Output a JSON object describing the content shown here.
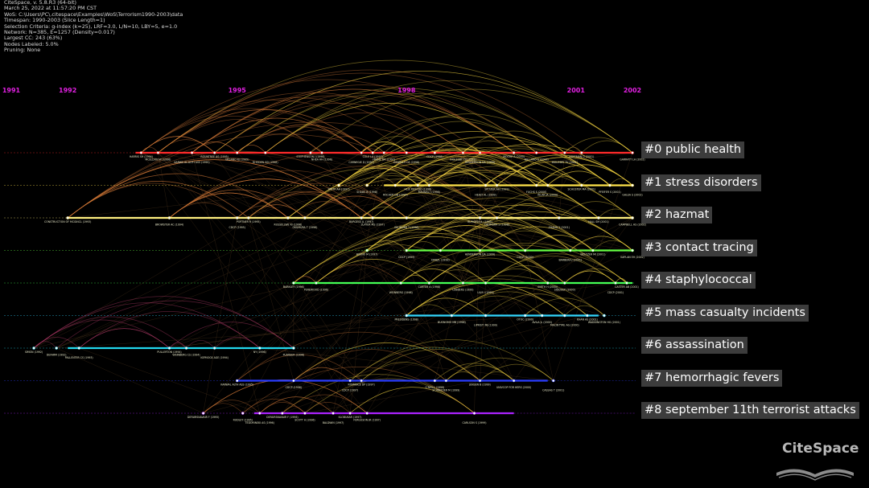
{
  "info_lines": [
    "CiteSpace, v. 5.8.R3 (64-bit)",
    "March 25, 2022 at 11:57:20 PM CST",
    "WoS: C:\\Users\\PC\\.citespace\\Examples\\WoS\\Terrorism1990-2003\\data",
    "Timespan: 1990-2003 (Slice Length=1)",
    "Selection Criteria: g-index (k=25), LRF=3.0, L/N=10, LBY=5, e=1.0",
    "Network: N=385, E=1257 (Density=0.017)",
    "Largest CC: 243 (63%)",
    "Nodes Labeled: 5.0%",
    "Pruning: None"
  ],
  "logo_text": "CiteSpace",
  "colors": {
    "year": "#e020e0",
    "background": "#000000",
    "arc_warm": "#f0c040",
    "arc_cool": "#d06030"
  },
  "chart_data": {
    "type": "timeline",
    "years": [
      1991,
      1992,
      1995,
      1998,
      2001,
      2002
    ],
    "xlim": [
      1991,
      2002
    ],
    "clusters": [
      {
        "id": 0,
        "label": "#0 public health",
        "color": "#ff2a2a",
        "start": 1993.2,
        "end": 2002,
        "nodes": [
          {
            "year": 1993.3,
            "label": "HARRIS SH (1994)"
          },
          {
            "year": 1993.6,
            "label": "MCELDON W (1996)"
          },
          {
            "year": 1994.2,
            "label": "KARWA AL-ALTH ASS (1995)"
          },
          {
            "year": 1994.6,
            "label": "ROUNTREE AS (1995)"
          },
          {
            "year": 1995.0,
            "label": "URSANO RJ (1995)"
          },
          {
            "year": 1995.5,
            "label": "RHODEN GD (1996)"
          },
          {
            "year": 1996.3,
            "label": "STEPHENSON J (1996)"
          },
          {
            "year": 1996.5,
            "label": "NHEA AH (1996)"
          },
          {
            "year": 1997.2,
            "label": "CARNEGIE D (1997)"
          },
          {
            "year": 1997.4,
            "label": "COLE LA (1997)"
          },
          {
            "year": 1997.6,
            "label": "FRANZ DR (1997)"
          },
          {
            "year": 1998.0,
            "label": "ESWELLS OS (1998)"
          },
          {
            "year": 1998.5,
            "label": "CDCP (1998)"
          },
          {
            "year": 1999.0,
            "label": "INGLESBY TV (1999)"
          },
          {
            "year": 1999.3,
            "label": "HENDERSON DA (1999)"
          },
          {
            "year": 1999.9,
            "label": "MOORE A (2000)"
          },
          {
            "year": 2000.3,
            "label": "BALLARD G (2000)"
          },
          {
            "year": 2000.8,
            "label": "INGLESBY TV (2001)"
          },
          {
            "year": 2001.1,
            "label": "HOFFMAN D (2001)"
          },
          {
            "year": 2002.0,
            "label": "GARRATT LA (2002)"
          }
        ]
      },
      {
        "id": 1,
        "label": "#1 stress disorders",
        "color": "#ffe44a",
        "start": 1997.6,
        "end": 2002,
        "nodes": [
          {
            "year": 1996.8,
            "label": "SMITH AA (1997)"
          },
          {
            "year": 1997.3,
            "label": "SHADE B (1998)"
          },
          {
            "year": 1997.8,
            "label": "ROCHER DB (1997)"
          },
          {
            "year": 1998.2,
            "label": "HLIX RICH DO (1998)"
          },
          {
            "year": 1998.4,
            "label": "MAUNAL J (1998)"
          },
          {
            "year": 1999.4,
            "label": "HEALY AL (1999)"
          },
          {
            "year": 1999.6,
            "label": "SPITZER AA (1999)"
          },
          {
            "year": 2000.3,
            "label": "FUCHS S (2000)"
          },
          {
            "year": 2000.5,
            "label": "KILAR JA (2000)"
          },
          {
            "year": 2001.1,
            "label": "SCHUSTER MA (2001)"
          },
          {
            "year": 2001.6,
            "label": "PFEIFER S (2001)"
          },
          {
            "year": 2002.0,
            "label": "GALEA S (2002)"
          }
        ]
      },
      {
        "id": 2,
        "label": "#2 hazmat",
        "color": "#fff080",
        "start": 1992.0,
        "end": 2002,
        "nodes": [
          {
            "year": 1992.0,
            "label": "CONSTRUCTION OF MCGINCL (1993)"
          },
          {
            "year": 1993.8,
            "label": "BROWSTER AC (1994)"
          },
          {
            "year": 1995.0,
            "label": "CDCP (1995)"
          },
          {
            "year": 1995.2,
            "label": "PORTNER R (1995)"
          },
          {
            "year": 1995.9,
            "label": "RUSSELLWE KI (1996)"
          },
          {
            "year": 1996.2,
            "label": "OKUMURA T (1996)"
          },
          {
            "year": 1997.2,
            "label": "BURGESS JL (1997)"
          },
          {
            "year": 1997.4,
            "label": "SLATER MS (1997)"
          },
          {
            "year": 1998.0,
            "label": "OKUMURA T (1998)"
          },
          {
            "year": 1999.3,
            "label": "BURGESS JL (1999)"
          },
          {
            "year": 1999.6,
            "label": "OKUMURA S (1998)"
          },
          {
            "year": 2000.7,
            "label": "ZHANG Y (2001)"
          },
          {
            "year": 2001.4,
            "label": "HALL SM (2001)"
          },
          {
            "year": 2002.0,
            "label": "CAMPBELL HS (2002)"
          }
        ]
      },
      {
        "id": 3,
        "label": "#3 contact tracing",
        "color": "#66ff44",
        "start": 1998.0,
        "end": 2002,
        "nodes": [
          {
            "year": 1997.3,
            "label": "BUENO M (1997)"
          },
          {
            "year": 1998.0,
            "label": "CDCP (1999)"
          },
          {
            "year": 1998.6,
            "label": "DANZL (1999)"
          },
          {
            "year": 1999.3,
            "label": "HENDERSON DA (1999)"
          },
          {
            "year": 2000.1,
            "label": "CDCP (2000)"
          },
          {
            "year": 2000.9,
            "label": "BARBERA J (2001)"
          },
          {
            "year": 2001.3,
            "label": "WELTZER MI (2001)"
          },
          {
            "year": 2002.0,
            "label": "KAPLAN EH (2002)"
          }
        ]
      },
      {
        "id": 4,
        "label": "#4 staphylococcal",
        "color": "#44ff55",
        "start": 1996.0,
        "end": 2002,
        "nodes": [
          {
            "year": 1996.0,
            "label": "BARKLEY (1996)"
          },
          {
            "year": 1996.4,
            "label": "PEREWOOD (1996)"
          },
          {
            "year": 1997.9,
            "label": "WEINBERG (1998)"
          },
          {
            "year": 1998.4,
            "label": "CARTER A (1998)"
          },
          {
            "year": 1999.0,
            "label": "LUBBERS (1999)"
          },
          {
            "year": 1999.4,
            "label": "ULM I (1999)"
          },
          {
            "year": 2000.5,
            "label": "SMITH H (2000)"
          },
          {
            "year": 2000.8,
            "label": "SIDDHUP (2000)"
          },
          {
            "year": 2001.7,
            "label": "CDCP (2001)"
          },
          {
            "year": 2001.9,
            "label": "CASTER AB (2001)"
          }
        ]
      },
      {
        "id": 5,
        "label": "#5 mass casualty incidents",
        "color": "#33d8ff",
        "start": 1998.0,
        "end": 2001.4,
        "nodes": [
          {
            "year": 1998.0,
            "label": "PRESIDENS (1998)"
          },
          {
            "year": 1998.8,
            "label": "BUONOMO MB (1998)"
          },
          {
            "year": 1999.4,
            "label": "LIPRISTI MJ (1999)"
          },
          {
            "year": 2000.1,
            "label": "OTOC (2000)"
          },
          {
            "year": 2000.4,
            "label": "AVILA JL (2000)"
          },
          {
            "year": 2000.8,
            "label": "MACINTYRE AG (2000)"
          },
          {
            "year": 2001.2,
            "label": "KHAN AS (2001)"
          },
          {
            "year": 2001.5,
            "label": "WADDINGTON HG (2001)"
          }
        ]
      },
      {
        "id": 6,
        "label": "#6 assassination",
        "color": "#22d8ee",
        "start": 1992.0,
        "end": 1996.0,
        "nodes": [
          {
            "year": 1991.4,
            "label": "SIMON (1992)"
          },
          {
            "year": 1991.8,
            "label": "DEFARM (1992)"
          },
          {
            "year": 1992.2,
            "label": "PALLENTER CS (1993)"
          },
          {
            "year": 1993.8,
            "label": "PULLERTON (1994)"
          },
          {
            "year": 1994.1,
            "label": "WEINBERG CS (1994)"
          },
          {
            "year": 1994.6,
            "label": "KEPNOCK AGE (1994)"
          },
          {
            "year": 1995.4,
            "label": "NY (1996)"
          },
          {
            "year": 1996.0,
            "label": "PLANGER (1996)"
          }
        ]
      },
      {
        "id": 7,
        "label": "#7 hemorrhagic fevers",
        "color": "#2a3cff",
        "start": 1995.0,
        "end": 2000.5,
        "nodes": [
          {
            "year": 1995.0,
            "label": "KARWAL ALTH ASS (1995)"
          },
          {
            "year": 1996.0,
            "label": "CDCP (1996)"
          },
          {
            "year": 1997.0,
            "label": "CDCP (1997)"
          },
          {
            "year": 1997.2,
            "label": "ROMANCE DP (1997)"
          },
          {
            "year": 1998.5,
            "label": "O'NEILL (1999)"
          },
          {
            "year": 1998.7,
            "label": "SCHNEIDER M (1999)"
          },
          {
            "year": 1999.3,
            "label": "JENSEN B (1999)"
          },
          {
            "year": 1999.9,
            "label": "UNIVCOP FOR HERS (2000)"
          },
          {
            "year": 2000.6,
            "label": "CASSAS T (2001)"
          }
        ]
      },
      {
        "id": 8,
        "label": "#8 september 11th terrorist attacks",
        "color": "#aa22ff",
        "start": 1995.3,
        "end": 1999.9,
        "nodes": [
          {
            "year": 1994.4,
            "label": "DEFAIRSNAVAIR F (1995)"
          },
          {
            "year": 1995.1,
            "label": "RUDLEY (1995)"
          },
          {
            "year": 1995.4,
            "label": "TEDORINSKI AS (1996)"
          },
          {
            "year": 1995.8,
            "label": "DEFAIRSNAVAIR F (1996)"
          },
          {
            "year": 1996.2,
            "label": "SCOTT A (1996)"
          },
          {
            "year": 1996.7,
            "label": "BALDWIN (1997)"
          },
          {
            "year": 1997.0,
            "label": "KLOBUKAR (1997)"
          },
          {
            "year": 1997.3,
            "label": "FERGUSON JR (1997)"
          },
          {
            "year": 1999.2,
            "label": "CARLSON S (1999)"
          }
        ]
      }
    ]
  }
}
